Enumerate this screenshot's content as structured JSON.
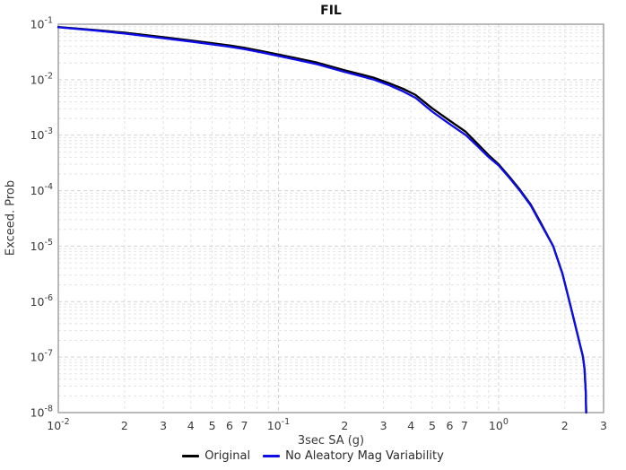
{
  "chart_data": {
    "type": "line",
    "title": "FIL",
    "xlabel": "3sec SA (g)",
    "ylabel": "Exceed. Prob",
    "xscale": "log",
    "yscale": "log",
    "xlim": [
      0.01,
      3
    ],
    "ylim": [
      1e-08,
      0.1
    ],
    "grid": true,
    "legend_position": "bottom",
    "colors": {
      "border": "#9c9c9c",
      "grid_major": "#d2d2d2",
      "grid_minor": "#e4e4e4",
      "tick_text": "#3a3a3a"
    },
    "x_ticks": [
      {
        "v": 0.01,
        "t": "10^-2"
      },
      {
        "v": 0.02,
        "t": "2"
      },
      {
        "v": 0.03,
        "t": "3"
      },
      {
        "v": 0.04,
        "t": "4"
      },
      {
        "v": 0.05,
        "t": "5"
      },
      {
        "v": 0.06,
        "t": "6"
      },
      {
        "v": 0.07,
        "t": "7"
      },
      {
        "v": 0.1,
        "t": "10^-1"
      },
      {
        "v": 0.2,
        "t": "2"
      },
      {
        "v": 0.3,
        "t": "3"
      },
      {
        "v": 0.4,
        "t": "4"
      },
      {
        "v": 0.5,
        "t": "5"
      },
      {
        "v": 0.6,
        "t": "6"
      },
      {
        "v": 0.7,
        "t": "7"
      },
      {
        "v": 1,
        "t": "10^0"
      },
      {
        "v": 2,
        "t": "2"
      },
      {
        "v": 3,
        "t": "3"
      }
    ],
    "y_ticks": [
      {
        "v": 0.1,
        "t": "10^-1"
      },
      {
        "v": 0.01,
        "t": "10^-2"
      },
      {
        "v": 0.001,
        "t": "10^-3"
      },
      {
        "v": 0.0001,
        "t": "10^-4"
      },
      {
        "v": 1e-05,
        "t": "10^-5"
      },
      {
        "v": 1e-06,
        "t": "10^-6"
      },
      {
        "v": 1e-07,
        "t": "10^-7"
      },
      {
        "v": 1e-08,
        "t": "10^-8"
      }
    ],
    "series": [
      {
        "name": "Original",
        "color": "#000000",
        "points": [
          [
            0.01,
            0.089
          ],
          [
            0.015,
            0.078
          ],
          [
            0.02,
            0.0705
          ],
          [
            0.03,
            0.0585
          ],
          [
            0.04,
            0.051
          ],
          [
            0.05,
            0.0455
          ],
          [
            0.06,
            0.0415
          ],
          [
            0.07,
            0.0375
          ],
          [
            0.085,
            0.0325
          ],
          [
            0.1,
            0.0285
          ],
          [
            0.12,
            0.0245
          ],
          [
            0.15,
            0.0203
          ],
          [
            0.2,
            0.0148
          ],
          [
            0.24,
            0.0123
          ],
          [
            0.27,
            0.0109
          ],
          [
            0.32,
            0.0086
          ],
          [
            0.37,
            0.0068
          ],
          [
            0.42,
            0.0053
          ],
          [
            0.5,
            0.00305
          ],
          [
            0.6,
            0.00183
          ],
          [
            0.71,
            0.00115
          ],
          [
            0.8,
            0.00071
          ],
          [
            0.9,
            0.00044
          ],
          [
            1.0,
            0.0003
          ],
          [
            1.12,
            0.000178
          ],
          [
            1.25,
            0.000104
          ],
          [
            1.4,
            5.6e-05
          ],
          [
            1.55,
            2.7e-05
          ],
          [
            1.77,
            1e-05
          ],
          [
            1.95,
            3.2e-06
          ],
          [
            2.1,
            1e-06
          ],
          [
            2.25,
            3.3e-07
          ],
          [
            2.42,
            1e-07
          ],
          [
            2.46,
            6e-08
          ],
          [
            2.49,
            2.4e-08
          ],
          [
            2.5,
            1e-08
          ]
        ]
      },
      {
        "name": "No Aleatory Mag Variability",
        "color": "#0d0de8",
        "points": [
          [
            0.01,
            0.088
          ],
          [
            0.015,
            0.0765
          ],
          [
            0.02,
            0.068
          ],
          [
            0.03,
            0.056
          ],
          [
            0.04,
            0.0487
          ],
          [
            0.05,
            0.0432
          ],
          [
            0.06,
            0.0393
          ],
          [
            0.07,
            0.0355
          ],
          [
            0.085,
            0.0307
          ],
          [
            0.1,
            0.0268
          ],
          [
            0.12,
            0.023
          ],
          [
            0.15,
            0.019
          ],
          [
            0.2,
            0.0138
          ],
          [
            0.24,
            0.0114
          ],
          [
            0.27,
            0.0101
          ],
          [
            0.32,
            0.0079
          ],
          [
            0.37,
            0.0061
          ],
          [
            0.42,
            0.0047
          ],
          [
            0.5,
            0.00265
          ],
          [
            0.6,
            0.00159
          ],
          [
            0.71,
            0.001
          ],
          [
            0.8,
            0.00064
          ],
          [
            0.9,
            0.000405
          ],
          [
            1.0,
            0.000285
          ],
          [
            1.12,
            0.00017
          ],
          [
            1.25,
            0.0001
          ],
          [
            1.4,
            5.4e-05
          ],
          [
            1.55,
            2.6e-05
          ],
          [
            1.77,
            1e-05
          ],
          [
            1.95,
            3.2e-06
          ],
          [
            2.1,
            1e-06
          ],
          [
            2.25,
            3.3e-07
          ],
          [
            2.42,
            1e-07
          ],
          [
            2.46,
            6e-08
          ],
          [
            2.49,
            2.4e-08
          ],
          [
            2.5,
            1e-08
          ]
        ]
      }
    ]
  }
}
